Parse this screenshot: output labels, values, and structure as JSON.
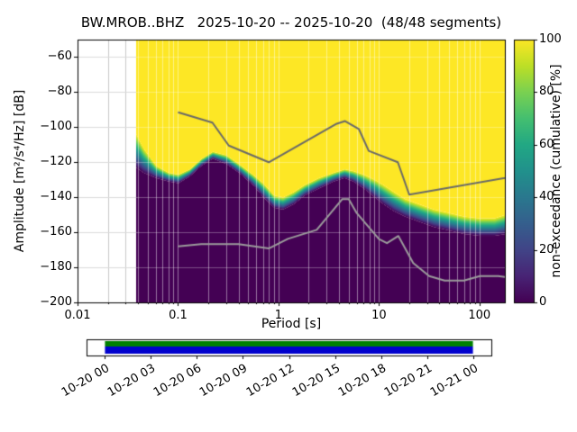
{
  "title": "BW.MROB..BHZ   2025-10-20 -- 2025-10-20  (48/48 segments)",
  "station": "BW.MROB..BHZ",
  "date_range": "2025-10-20 -- 2025-10-20",
  "segments": "48/48 segments",
  "chart_data": {
    "type": "heatmap",
    "subtype": "ppsd-cumulative-spectral-probability",
    "title": "BW.MROB..BHZ   2025-10-20 -- 2025-10-20  (48/48 segments)",
    "xlabel": "Period [s]",
    "ylabel": "Amplitude [m²/s⁴/Hz] [dB]",
    "colorbar_label": "non-exceedance (cumulative) [%]",
    "xscale": "log",
    "grid": true,
    "xlim": [
      0.01,
      179
    ],
    "ylim": [
      -200,
      -50
    ],
    "colorbar_range": [
      0,
      100
    ],
    "x_ticks": [
      {
        "value": 0.01,
        "label": "0.01"
      },
      {
        "value": 0.1,
        "label": "0.1"
      },
      {
        "value": 1,
        "label": "1"
      },
      {
        "value": 10,
        "label": "10"
      },
      {
        "value": 100,
        "label": "100"
      }
    ],
    "y_ticks": [
      {
        "value": -200,
        "label": "−200"
      },
      {
        "value": -180,
        "label": "−180"
      },
      {
        "value": -160,
        "label": "−160"
      },
      {
        "value": -140,
        "label": "−140"
      },
      {
        "value": -120,
        "label": "−120"
      },
      {
        "value": -100,
        "label": "−100"
      },
      {
        "value": -80,
        "label": "−80"
      },
      {
        "value": -60,
        "label": "−60"
      }
    ],
    "colorbar_ticks": [
      0,
      20,
      40,
      60,
      80,
      100
    ],
    "colormap": {
      "name": "viridis",
      "stops": [
        [
          0.0,
          "#440154"
        ],
        [
          0.1,
          "#482475"
        ],
        [
          0.2,
          "#414487"
        ],
        [
          0.3,
          "#355f8d"
        ],
        [
          0.4,
          "#2a788e"
        ],
        [
          0.5,
          "#21918c"
        ],
        [
          0.6,
          "#22a884"
        ],
        [
          0.7,
          "#44bf70"
        ],
        [
          0.8,
          "#7ad151"
        ],
        [
          0.9,
          "#bddf26"
        ],
        [
          1.0,
          "#fde725"
        ]
      ]
    },
    "data_period_min": 0.038,
    "distribution_band": {
      "description": "Per period [s]: dB level where non-exceedance is 0% (top of dark region) and 100% (bottom of yellow region); transition follows viridis colormap.",
      "points": [
        [
          0.038,
          -123,
          -104
        ],
        [
          0.045,
          -126,
          -112
        ],
        [
          0.06,
          -129,
          -122
        ],
        [
          0.08,
          -131,
          -126
        ],
        [
          0.1,
          -132,
          -127
        ],
        [
          0.13,
          -128,
          -124
        ],
        [
          0.17,
          -122,
          -118
        ],
        [
          0.22,
          -118,
          -114
        ],
        [
          0.3,
          -121,
          -116
        ],
        [
          0.4,
          -126,
          -121
        ],
        [
          0.55,
          -133,
          -127
        ],
        [
          0.7,
          -140,
          -132
        ],
        [
          0.9,
          -146,
          -139
        ],
        [
          1.1,
          -147,
          -140
        ],
        [
          1.4,
          -144,
          -137
        ],
        [
          1.8,
          -139,
          -133
        ],
        [
          2.5,
          -135,
          -129
        ],
        [
          3.5,
          -131,
          -126
        ],
        [
          4.5,
          -129,
          -124
        ],
        [
          5.5,
          -131,
          -125
        ],
        [
          7.0,
          -135,
          -127
        ],
        [
          9.0,
          -140,
          -130
        ],
        [
          11.0,
          -144,
          -133
        ],
        [
          14.0,
          -148,
          -137
        ],
        [
          18.0,
          -151,
          -141
        ],
        [
          25.0,
          -154,
          -144
        ],
        [
          35.0,
          -157,
          -147
        ],
        [
          50.0,
          -159,
          -149
        ],
        [
          70.0,
          -161,
          -151
        ],
        [
          100.0,
          -162,
          -152
        ],
        [
          140.0,
          -162,
          -152
        ],
        [
          179.0,
          -161,
          -150
        ]
      ]
    },
    "noise_models": {
      "nhnm_color": "#696969",
      "nlnm_color": "#9c9c9c",
      "nhnm": [
        [
          0.1,
          -91.5
        ],
        [
          0.22,
          -97.4
        ],
        [
          0.32,
          -110.5
        ],
        [
          0.8,
          -120.0
        ],
        [
          3.8,
          -98.0
        ],
        [
          4.6,
          -96.5
        ],
        [
          6.3,
          -101.0
        ],
        [
          7.9,
          -113.5
        ],
        [
          15.4,
          -120.0
        ],
        [
          20.0,
          -138.5
        ],
        [
          354.8,
          -126.0
        ]
      ],
      "nlnm": [
        [
          0.1,
          -168.0
        ],
        [
          0.17,
          -166.7
        ],
        [
          0.4,
          -166.7
        ],
        [
          0.8,
          -169.2
        ],
        [
          1.24,
          -163.7
        ],
        [
          2.4,
          -158.6
        ],
        [
          4.3,
          -141.1
        ],
        [
          5.0,
          -141.1
        ],
        [
          6.0,
          -149.0
        ],
        [
          10.0,
          -163.8
        ],
        [
          12.0,
          -166.2
        ],
        [
          15.6,
          -162.1
        ],
        [
          21.9,
          -177.5
        ],
        [
          31.6,
          -185.0
        ],
        [
          45.0,
          -187.5
        ],
        [
          70.0,
          -187.5
        ],
        [
          101.0,
          -185.0
        ],
        [
          154.0,
          -185.0
        ],
        [
          328.0,
          -187.5
        ]
      ]
    },
    "timeline": {
      "ticks": [
        "10-20 00",
        "10-20 03",
        "10-20 06",
        "10-20 09",
        "10-20 12",
        "10-20 15",
        "10-20 18",
        "10-20 21",
        "10-21 00"
      ],
      "coverage": {
        "start_frac": 0.0455,
        "end_frac": 0.9545,
        "data_color": "#008000",
        "segment_color": "#0000cd"
      }
    }
  }
}
